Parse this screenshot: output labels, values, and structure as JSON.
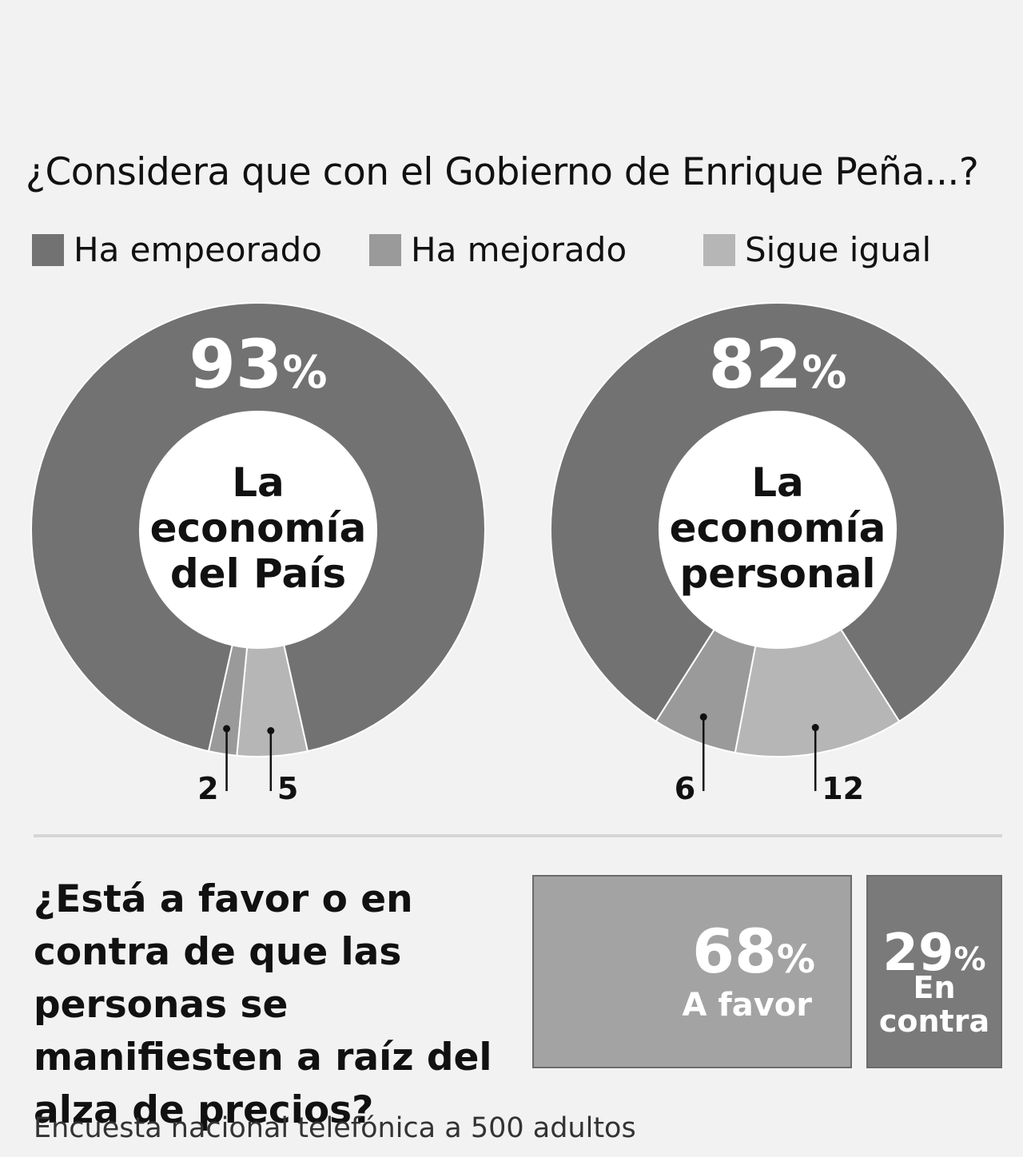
{
  "question1": "¿Considera que con el Gobierno de Enrique Peña...?",
  "legend": [
    {
      "label": "Ha empeorado",
      "color": "#727272"
    },
    {
      "label": "Ha mejorado",
      "color": "#9a9a9a"
    },
    {
      "label": "Sigue igual",
      "color": "#b6b6b6"
    }
  ],
  "chart_data": [
    {
      "type": "pie",
      "center_label": [
        "La",
        "economía",
        "del País"
      ],
      "slices": [
        {
          "category": "Ha empeorado",
          "value": 93,
          "label": "93%"
        },
        {
          "category": "Sigue igual",
          "value": 5,
          "label": "5"
        },
        {
          "category": "Ha mejorado",
          "value": 2,
          "label": "2"
        }
      ]
    },
    {
      "type": "pie",
      "center_label": [
        "La",
        "economía",
        "personal"
      ],
      "slices": [
        {
          "category": "Ha empeorado",
          "value": 82,
          "label": "82%"
        },
        {
          "category": "Sigue igual",
          "value": 12,
          "label": "12"
        },
        {
          "category": "Ha mejorado",
          "value": 6,
          "label": "6"
        }
      ]
    },
    {
      "type": "bar",
      "title": "¿Está a favor o en contra de que las personas se manifiesten a raíz del alza de precios?",
      "categories": [
        "A favor",
        "En contra"
      ],
      "values": [
        68,
        29
      ],
      "labels": [
        "68%",
        "29%"
      ]
    }
  ],
  "question2": "¿Está a favor o en contra de que las personas se manifiesten a raíz del alza de precios?",
  "favor": {
    "value": "68",
    "pct": "%",
    "label": "A favor",
    "color": "#a3a3a3"
  },
  "contra": {
    "value": "29",
    "pct": "%",
    "label": "En\ncontra",
    "color": "#7a7a7a"
  },
  "footnote": "Encuesta nacional telefónica a 500 adultos"
}
